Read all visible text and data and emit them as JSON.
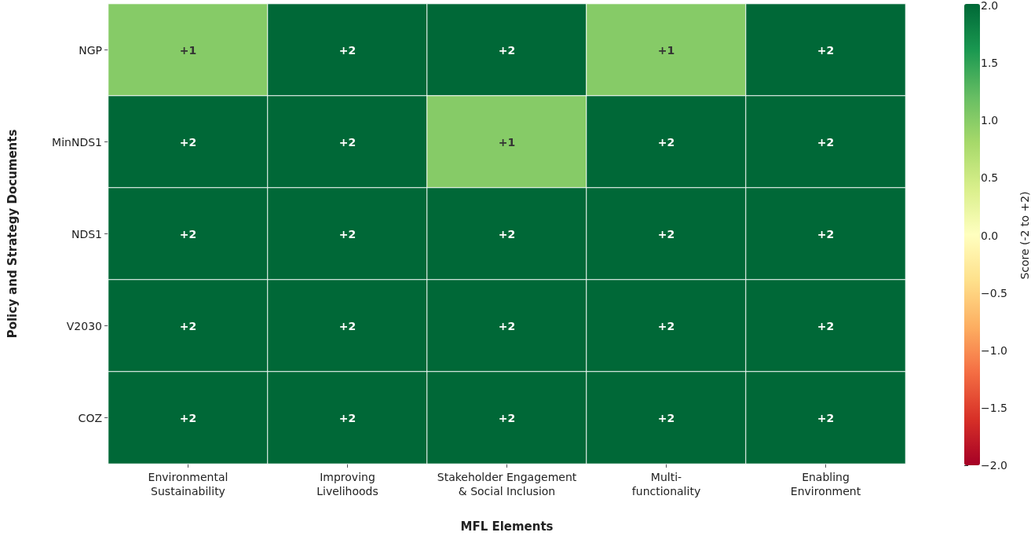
{
  "chart_data": {
    "type": "heatmap",
    "xlabel": "MFL Elements",
    "ylabel": "Policy and Strategy Documents",
    "clabel": "Score (-2 to +2)",
    "categories": [
      "Environmental\nSustainability",
      "Improving\nLivelihoods",
      "Stakeholder Engagement\n& Social Inclusion",
      "Multi-\nfunctionality",
      "Enabling\nEnvironment"
    ],
    "y_categories": [
      "NGP",
      "MinNDS1",
      "NDS1",
      "V2030",
      "COZ"
    ],
    "cells": [
      [
        1,
        2,
        2,
        1,
        2
      ],
      [
        2,
        2,
        1,
        2,
        2
      ],
      [
        2,
        2,
        2,
        2,
        2
      ],
      [
        2,
        2,
        2,
        2,
        2
      ],
      [
        2,
        2,
        2,
        2,
        2
      ]
    ],
    "cell_labels": [
      [
        "+1",
        "+2",
        "+2",
        "+1",
        "+2"
      ],
      [
        "+2",
        "+2",
        "+1",
        "+2",
        "+2"
      ],
      [
        "+2",
        "+2",
        "+2",
        "+2",
        "+2"
      ],
      [
        "+2",
        "+2",
        "+2",
        "+2",
        "+2"
      ],
      [
        "+2",
        "+2",
        "+2",
        "+2",
        "+2"
      ]
    ],
    "clim": [
      -2,
      2
    ],
    "cticks": [
      {
        "value": -2,
        "label": "−2.0"
      },
      {
        "value": -1.5,
        "label": "−1.5"
      },
      {
        "value": -1,
        "label": "−1.0"
      },
      {
        "value": -0.5,
        "label": "−0.5"
      },
      {
        "value": 0,
        "label": "0.0"
      },
      {
        "value": 0.5,
        "label": "0.5"
      },
      {
        "value": 1,
        "label": "1.0"
      },
      {
        "value": 1.5,
        "label": "1.5"
      },
      {
        "value": 2,
        "label": "2.0"
      }
    ]
  }
}
